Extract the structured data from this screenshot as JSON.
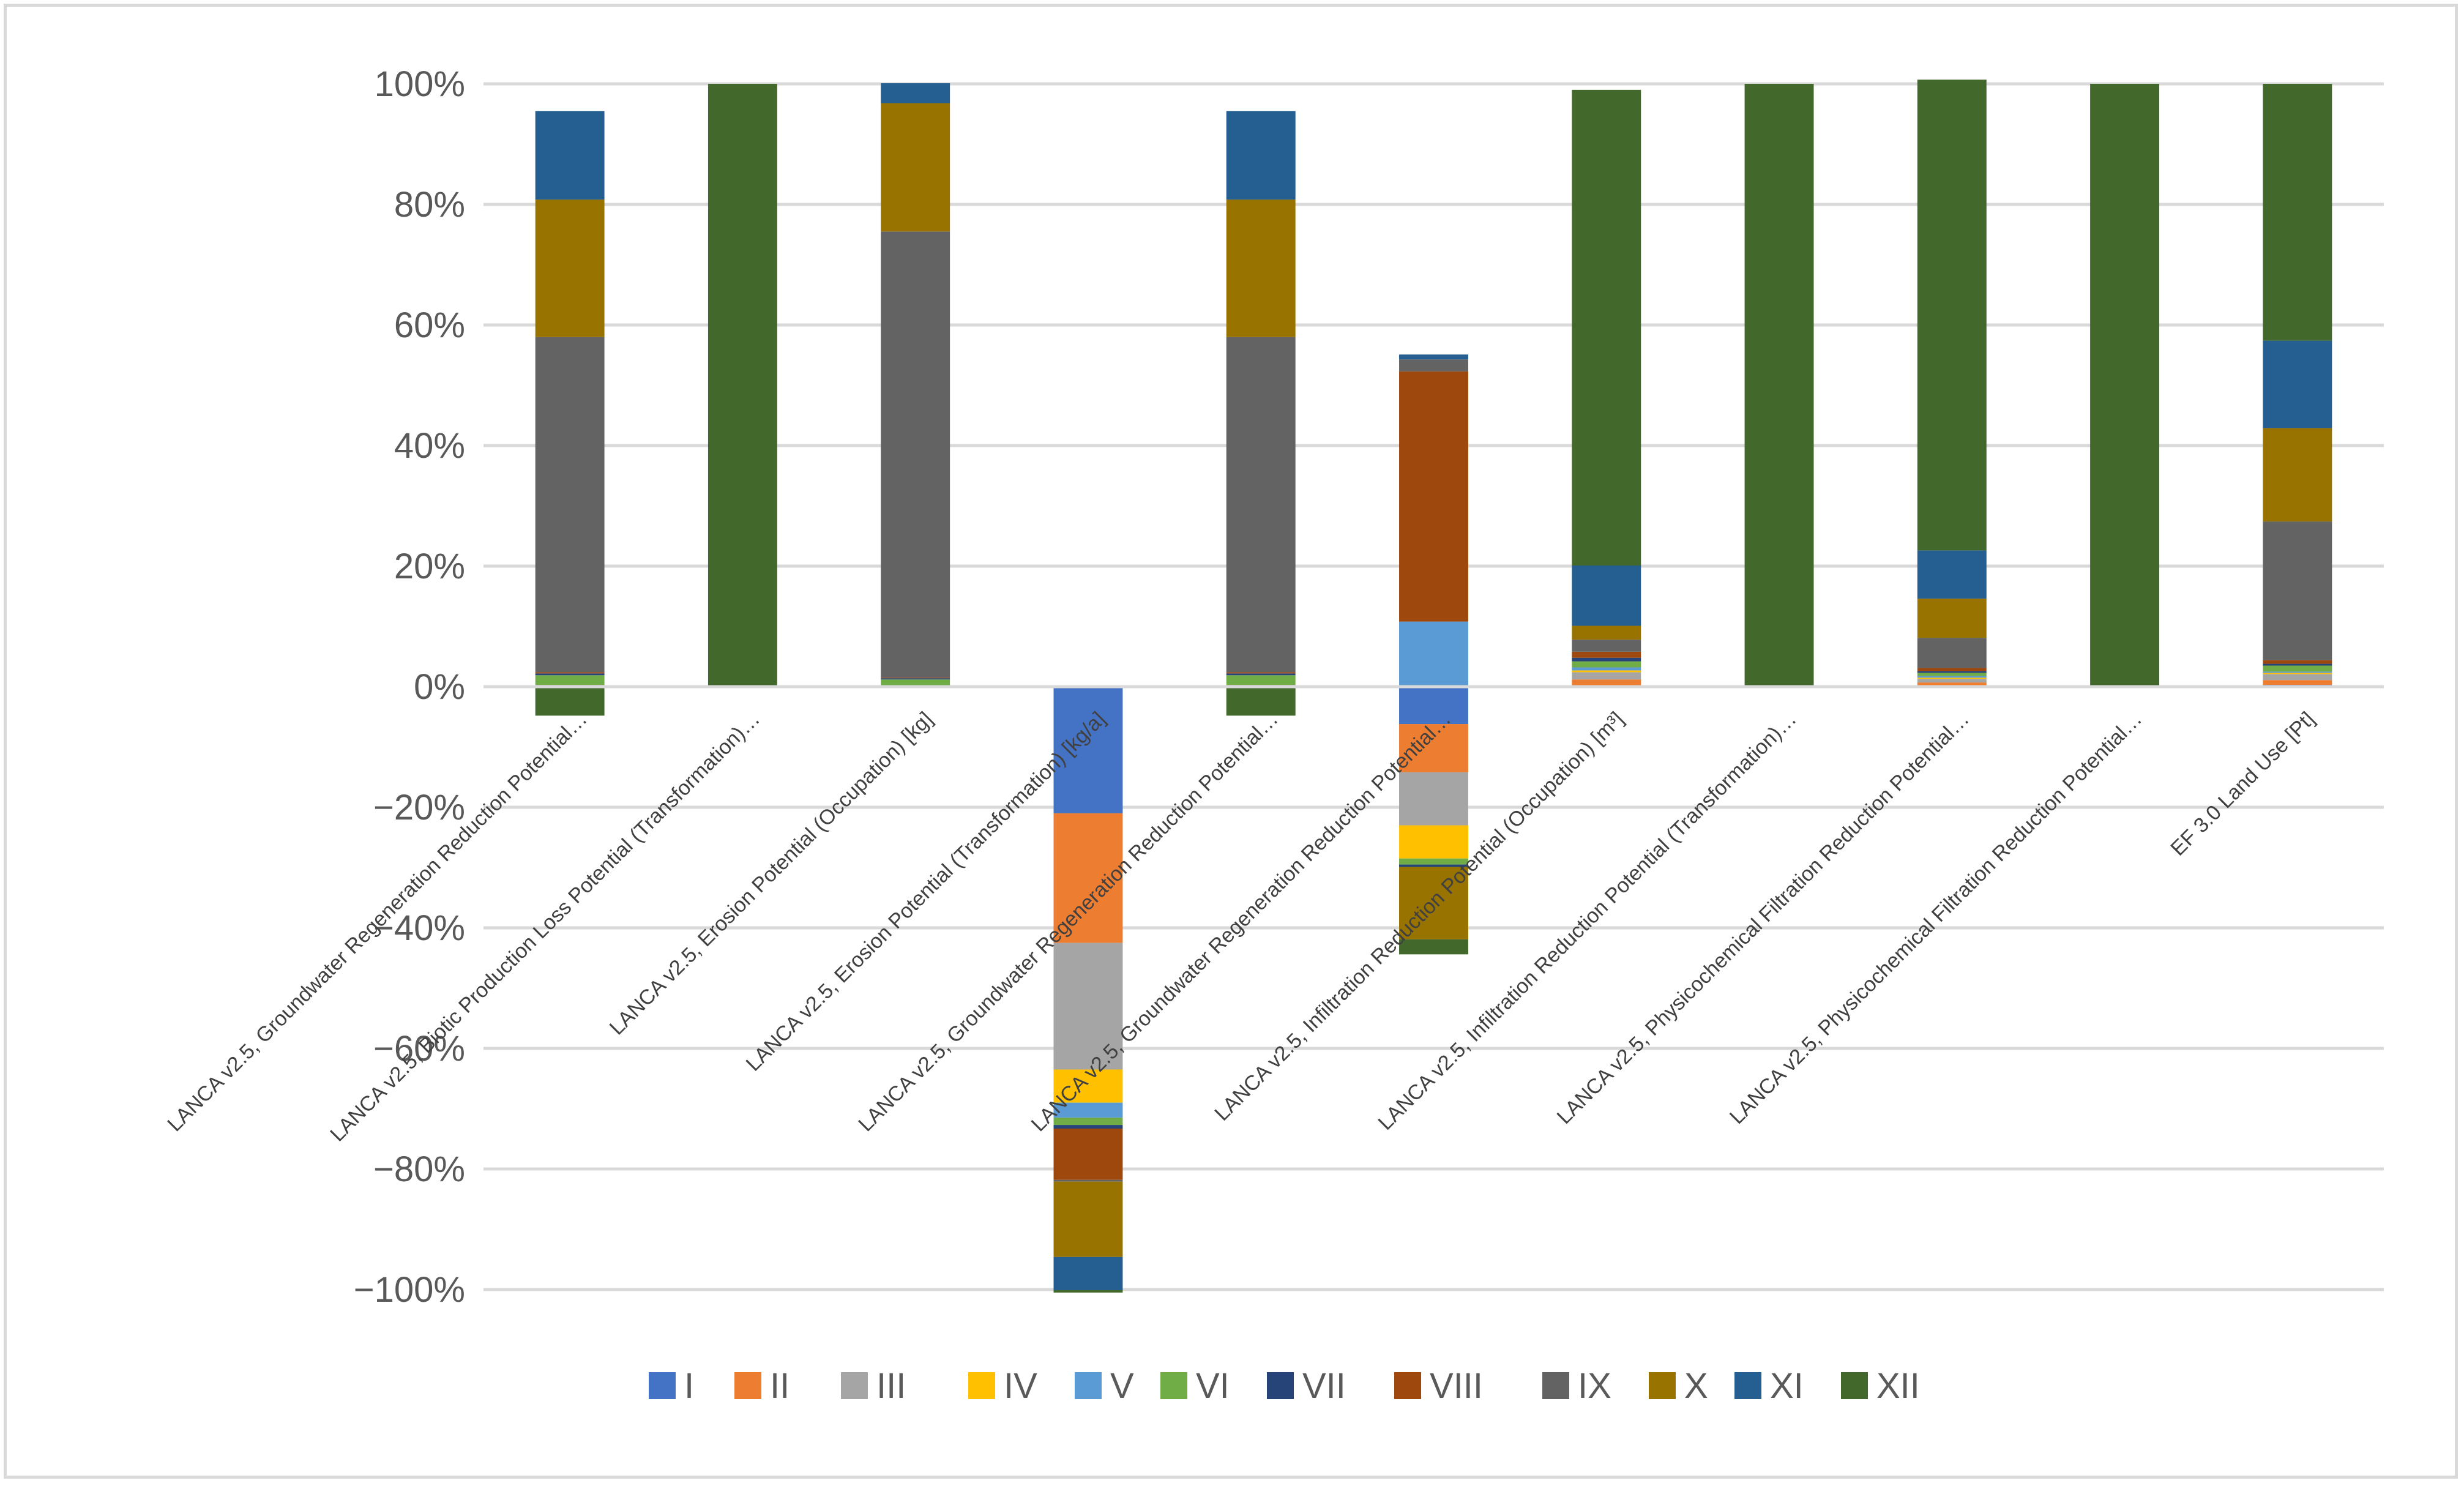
{
  "chart_data": {
    "type": "bar",
    "stacked": true,
    "title": "",
    "xlabel": "",
    "ylabel": "",
    "ylim": [
      -1.0,
      1.0
    ],
    "yticks": [
      1.0,
      0.8,
      0.6,
      0.4,
      0.2,
      0.0,
      -0.2,
      -0.4,
      -0.6,
      -0.8,
      -1.0
    ],
    "ytick_labels": [
      "100%",
      "80%",
      "60%",
      "40%",
      "20%",
      "0%",
      "−20%",
      "−40%",
      "−60%",
      "−80%",
      "−100%"
    ],
    "grid": true,
    "legend_position": "bottom",
    "categories": [
      "LANCA v2.5, Groundwater Regeneration Reduction Potential…",
      "LANCA v2.5, Biotic Production Loss Potential (Transformation)…",
      "LANCA v2.5, Erosion Potential (Occupation) [kg]",
      "LANCA v2.5, Erosion Potential (Transformation) [kg/a]",
      "LANCA v2.5, Groundwater Regeneration Reduction Potential…",
      "LANCA v2.5, Groundwater Regeneration Reduction Potential…",
      "LANCA v2.5, Infiltration Reduction Potential (Occupation) [m³]",
      "LANCA v2.5, Infiltration Reduction Potential (Transformation)…",
      "LANCA v2.5, Physicochemical Filtration Reduction Potential…",
      "LANCA v2.5, Physicochemical Filtration Reduction Potential…",
      "EF 3.0 Land Use [Pt]"
    ],
    "series": [
      {
        "name": "I",
        "color": "#4472c4",
        "values": [
          0,
          0,
          0,
          -0.21,
          0,
          -0.062,
          0.002,
          0,
          0.001,
          0,
          0.003
        ]
      },
      {
        "name": "II",
        "color": "#ed7d31",
        "values": [
          0,
          0,
          0,
          -0.215,
          0,
          -0.08,
          0.01,
          0,
          0.006,
          0,
          0.008
        ]
      },
      {
        "name": "III",
        "color": "#a5a5a5",
        "values": [
          0.003,
          0,
          0.002,
          -0.21,
          0.003,
          -0.088,
          0.012,
          0,
          0.006,
          0,
          0.01
        ]
      },
      {
        "name": "IV",
        "color": "#ffc000",
        "values": [
          0,
          0,
          0,
          -0.055,
          0,
          -0.055,
          0.003,
          0,
          0.002,
          0,
          0.002
        ]
      },
      {
        "name": "V",
        "color": "#5b9bd5",
        "values": [
          0,
          0,
          0,
          -0.025,
          0,
          0.108,
          0.005,
          0,
          0.003,
          0,
          0.002
        ]
      },
      {
        "name": "VI",
        "color": "#70ad47",
        "values": [
          0.016,
          0,
          0.01,
          -0.012,
          0.016,
          -0.01,
          0.01,
          0,
          0.005,
          0,
          0.01
        ]
      },
      {
        "name": "VII",
        "color": "#264478",
        "values": [
          0.003,
          0,
          0.002,
          -0.006,
          0.003,
          -0.004,
          0.006,
          0,
          0.003,
          0,
          0.003
        ]
      },
      {
        "name": "VIII",
        "color": "#9e480e",
        "values": [
          0.002,
          0,
          0.001,
          -0.085,
          0.002,
          0.415,
          0.01,
          0,
          0.005,
          0,
          0.006
        ]
      },
      {
        "name": "IX",
        "color": "#636363",
        "values": [
          0.556,
          0,
          0.74,
          -0.003,
          0.556,
          0.02,
          0.02,
          0,
          0.05,
          0,
          0.23
        ]
      },
      {
        "name": "X",
        "color": "#997300",
        "values": [
          0.228,
          0,
          0.213,
          -0.125,
          0.228,
          -0.12,
          0.023,
          0,
          0.065,
          0,
          0.155
        ]
      },
      {
        "name": "XI",
        "color": "#255e91",
        "values": [
          0.147,
          0,
          0.033,
          -0.055,
          0.147,
          0.008,
          0.1,
          0,
          0.08,
          0,
          0.145
        ]
      },
      {
        "name": "XII",
        "color": "#43682b",
        "values": [
          -0.048,
          1.0,
          0,
          -0.004,
          -0.048,
          -0.025,
          0.789,
          1.0,
          0.781,
          1.0,
          0.426
        ]
      }
    ]
  }
}
